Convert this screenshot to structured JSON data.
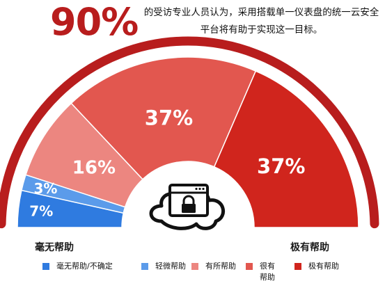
{
  "header": {
    "headline": "90%",
    "subtitle": "的受访专业人员认为，采用搭载单一仪表盘的统一云安全平台将有助于实现这一目标。"
  },
  "chart_data": {
    "type": "pie",
    "variant": "half-donut",
    "categories": [
      "毫无帮助/不确定",
      "轻微帮助",
      "有所帮助",
      "很有帮助",
      "极有帮助"
    ],
    "values": [
      7,
      3,
      16,
      37,
      37
    ],
    "labels": [
      "7%",
      "3%",
      "16%",
      "37%",
      "37%"
    ],
    "colors": [
      "#2f7be0",
      "#5b9bea",
      "#ec8680",
      "#e2574f",
      "#d0251d"
    ],
    "outer_arc_color": "#b81d1d",
    "scale_labels": {
      "start": "毫无帮助",
      "end": "极有帮助"
    },
    "legend": {
      "placement": "bottom",
      "items": [
        {
          "label": "毫无帮助/不确定",
          "color": "#2f7be0"
        },
        {
          "label": "轻微帮助",
          "color": "#5b9bea"
        },
        {
          "label": "有所帮助",
          "color": "#ec8680"
        },
        {
          "label": "很有\n帮助",
          "color": "#e2574f"
        },
        {
          "label": "极有帮助",
          "color": "#d0251d"
        }
      ]
    },
    "center_icon": "cloud-lock-window-icon"
  }
}
